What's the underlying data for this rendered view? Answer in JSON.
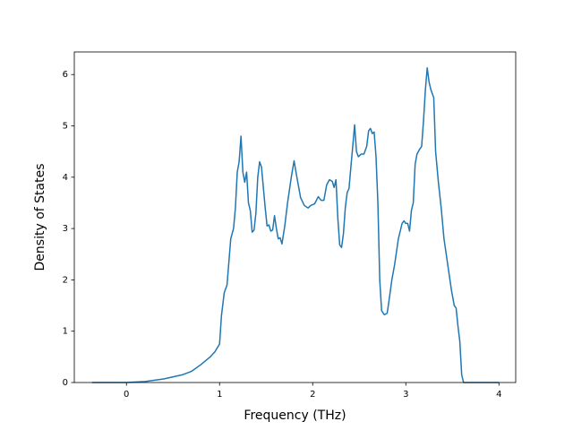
{
  "chart_data": {
    "type": "line",
    "xlabel": "Frequency (THz)",
    "ylabel": "Density of States",
    "color": "#1f77b4",
    "xlim": [
      -0.56,
      4.18
    ],
    "ylim": [
      0,
      6.44
    ],
    "xticks": [
      0,
      1,
      2,
      3,
      4
    ],
    "yticks": [
      0,
      1,
      2,
      3,
      4,
      5,
      6
    ],
    "grid": false,
    "x": [
      -0.37,
      0,
      0.2,
      0.4,
      0.6,
      0.7,
      0.8,
      0.9,
      0.95,
      1.0,
      1.02,
      1.05,
      1.08,
      1.12,
      1.15,
      1.17,
      1.19,
      1.21,
      1.23,
      1.25,
      1.27,
      1.29,
      1.31,
      1.33,
      1.35,
      1.37,
      1.39,
      1.41,
      1.43,
      1.45,
      1.47,
      1.49,
      1.51,
      1.53,
      1.55,
      1.57,
      1.59,
      1.61,
      1.63,
      1.65,
      1.67,
      1.7,
      1.73,
      1.77,
      1.8,
      1.83,
      1.87,
      1.91,
      1.95,
      1.98,
      2.02,
      2.06,
      2.09,
      2.12,
      2.15,
      2.18,
      2.21,
      2.23,
      2.25,
      2.27,
      2.29,
      2.31,
      2.33,
      2.35,
      2.37,
      2.39,
      2.41,
      2.43,
      2.45,
      2.47,
      2.49,
      2.52,
      2.55,
      2.58,
      2.6,
      2.62,
      2.64,
      2.66,
      2.68,
      2.7,
      2.72,
      2.74,
      2.77,
      2.8,
      2.82,
      2.85,
      2.88,
      2.92,
      2.96,
      2.98,
      3.0,
      3.02,
      3.04,
      3.06,
      3.08,
      3.1,
      3.12,
      3.15,
      3.17,
      3.19,
      3.21,
      3.23,
      3.25,
      3.27,
      3.3,
      3.32,
      3.35,
      3.38,
      3.41,
      3.45,
      3.49,
      3.52,
      3.54,
      3.56,
      3.58,
      3.6,
      3.62,
      4.0
    ],
    "values": [
      0,
      0,
      0.02,
      0.07,
      0.15,
      0.22,
      0.35,
      0.5,
      0.6,
      0.75,
      1.3,
      1.75,
      1.9,
      2.8,
      3.0,
      3.4,
      4.1,
      4.3,
      4.8,
      4.1,
      3.9,
      4.1,
      3.5,
      3.35,
      2.93,
      2.97,
      3.3,
      4.0,
      4.3,
      4.2,
      3.8,
      3.4,
      3.05,
      3.07,
      2.95,
      2.97,
      3.25,
      3.0,
      2.8,
      2.82,
      2.7,
      3.05,
      3.5,
      4.0,
      4.32,
      4.0,
      3.6,
      3.45,
      3.4,
      3.45,
      3.48,
      3.62,
      3.55,
      3.55,
      3.85,
      3.95,
      3.92,
      3.8,
      3.95,
      3.2,
      2.68,
      2.63,
      2.9,
      3.4,
      3.7,
      3.78,
      4.2,
      4.6,
      5.02,
      4.5,
      4.4,
      4.45,
      4.45,
      4.6,
      4.9,
      4.95,
      4.85,
      4.88,
      4.4,
      3.5,
      2.0,
      1.4,
      1.32,
      1.35,
      1.6,
      2.0,
      2.3,
      2.8,
      3.1,
      3.15,
      3.1,
      3.1,
      2.95,
      3.35,
      3.5,
      4.25,
      4.45,
      4.55,
      4.6,
      5.1,
      5.7,
      6.13,
      5.85,
      5.7,
      5.55,
      4.5,
      3.9,
      3.4,
      2.8,
      2.3,
      1.8,
      1.5,
      1.45,
      1.1,
      0.8,
      0.15,
      0,
      0
    ]
  }
}
